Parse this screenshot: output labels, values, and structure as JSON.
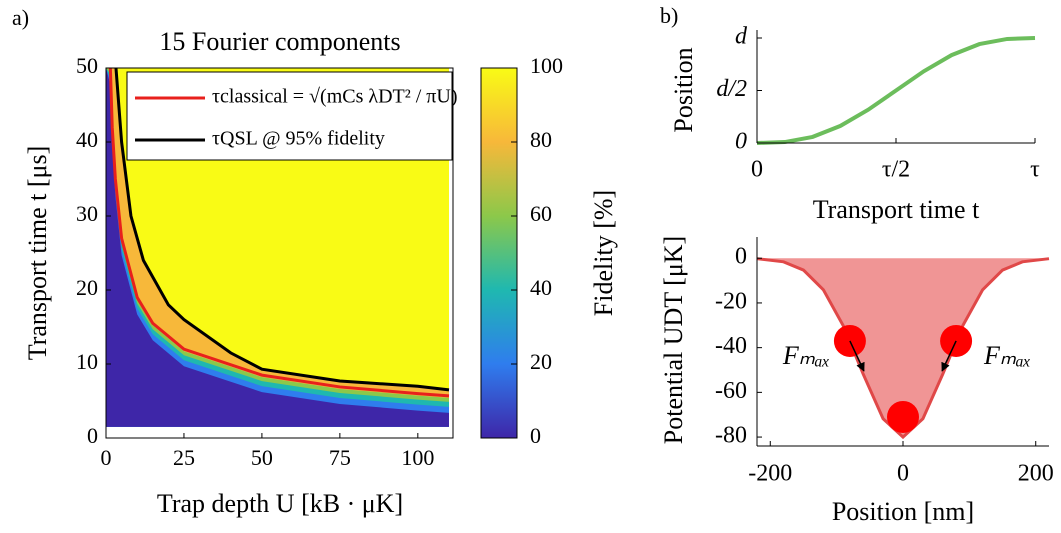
{
  "chart_data": [
    {
      "type": "heatmap",
      "panel_label": "a)",
      "title": "15 Fourier components",
      "xlabel": "Trap depth U [kB · μK]",
      "ylabel": "Transport time t [μs]",
      "xlim": [
        0,
        110
      ],
      "ylim": [
        0,
        50
      ],
      "xticks": [
        0,
        25,
        50,
        75,
        100
      ],
      "yticks": [
        0,
        10,
        20,
        30,
        40,
        50
      ],
      "heatmap_extent": {
        "x": [
          0,
          110
        ],
        "y": [
          1.5,
          50
        ]
      },
      "legend": "upper right",
      "series": [
        {
          "name": "τclassical = √(mCs λDT² / πU)",
          "color": "#e8201c",
          "x": [
            1.4,
            2,
            3,
            5,
            10,
            15,
            25,
            50,
            75,
            100,
            110
          ],
          "values": [
            50,
            42,
            35,
            27,
            19,
            15.5,
            12,
            8.5,
            6.9,
            6.0,
            5.7
          ]
        },
        {
          "name": "τQSL @ 95% fidelity",
          "color": "#000000",
          "x": [
            3.2,
            5,
            8,
            12,
            20,
            25,
            40,
            50,
            75,
            100,
            110
          ],
          "values": [
            50,
            40,
            30,
            24,
            18,
            16,
            11.5,
            9.3,
            7.7,
            7.0,
            6.5
          ]
        }
      ],
      "colorbar": {
        "label": "Fidelity [%]",
        "lim": [
          0,
          100
        ],
        "ticks": [
          0,
          20,
          40,
          60,
          80,
          100
        ],
        "colormap": [
          "#3e26a8",
          "#2f7dee",
          "#1fb8b0",
          "#8cc84a",
          "#f7b83a",
          "#f9fb15"
        ]
      }
    },
    {
      "type": "line",
      "panel_label": "b)",
      "xlabel": "Transport time t",
      "ylabel": "Position",
      "x": [
        0,
        0.1,
        0.2,
        0.3,
        0.4,
        0.5,
        0.6,
        0.7,
        0.8,
        0.9,
        1
      ],
      "series": [
        {
          "color": "#6cbd5c",
          "values": [
            0,
            0.009,
            0.058,
            0.163,
            0.317,
            0.5,
            0.683,
            0.837,
            0.942,
            0.991,
            1
          ]
        }
      ],
      "xlim": [
        0,
        1
      ],
      "ylim": [
        0,
        1
      ],
      "xticks": [
        0,
        {
          "value": 0.5,
          "label": "τ/2"
        },
        {
          "value": 1,
          "label": "τ"
        }
      ],
      "yticks": [
        0,
        {
          "value": 0.5,
          "label": "d/2"
        },
        {
          "value": 1,
          "label": "d"
        }
      ]
    },
    {
      "type": "area",
      "xlabel": "Position [nm]",
      "ylabel": "Potential UDT [μK]",
      "x": [
        -220,
        -180,
        -150,
        -120,
        -90,
        -60,
        -30,
        0,
        30,
        60,
        90,
        120,
        150,
        180,
        220
      ],
      "series": [
        {
          "color": "#e04848",
          "fill": "#f09595",
          "values": [
            -0.2,
            -1.6,
            -5.3,
            -14.1,
            -30.2,
            -51.8,
            -71.8,
            -80,
            -71.8,
            -51.8,
            -30.2,
            -14.1,
            -5.3,
            -1.6,
            -0.2
          ]
        }
      ],
      "atoms": {
        "color": "#ff0000",
        "x": [
          -80,
          80,
          0
        ],
        "values": [
          -37,
          -37,
          -71
        ]
      },
      "annotations": [
        "Fₘₐₓ",
        "Fₘₐₓ"
      ],
      "xlim": [
        -220,
        220
      ],
      "ylim": [
        -84,
        9.5
      ],
      "xticks": [
        -200,
        0,
        200
      ],
      "yticks": [
        0,
        -20,
        -40,
        -60,
        -80
      ]
    }
  ]
}
